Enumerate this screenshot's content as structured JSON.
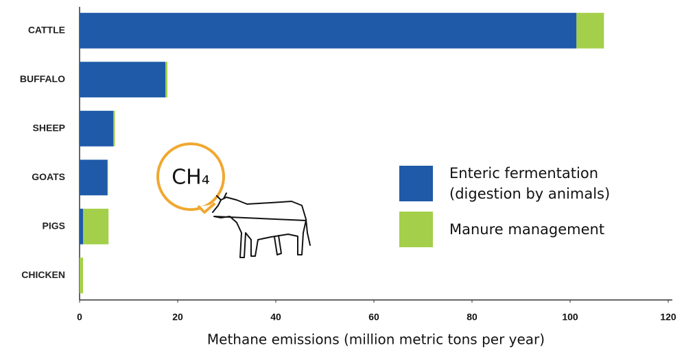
{
  "chart_data": {
    "type": "stacked-barh",
    "x_label": "Methane emissions (million metric tons per year)",
    "categories": [
      "CATTLE",
      "BUFFALO",
      "SHEEP",
      "GOATS",
      "PIGS",
      "CHICKEN"
    ],
    "series": [
      {
        "name": "Enteric fermentation (digestion by animals)",
        "color": "#1f5aa8",
        "values": [
          101.3,
          17.5,
          6.9,
          5.7,
          0.7,
          0
        ]
      },
      {
        "name": "Manure management",
        "color": "#a4cf4a",
        "values": [
          5.6,
          0.4,
          0.3,
          0.1,
          5.2,
          0.7
        ]
      }
    ],
    "xlim": [
      0,
      120
    ],
    "xticks": [
      0,
      20,
      40,
      60,
      80,
      100,
      120
    ],
    "annotation": "CH₄"
  }
}
